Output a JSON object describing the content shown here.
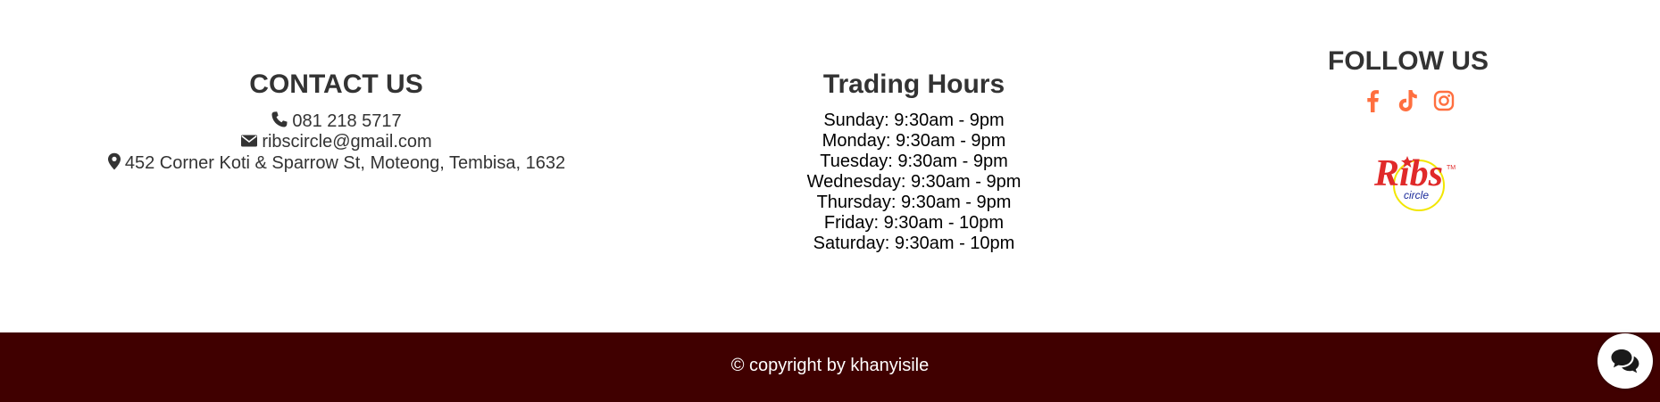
{
  "contact": {
    "title": "CONTACT US",
    "phone": "081 218 5717",
    "email": "ribscircle@gmail.com",
    "address": "452 Corner Koti & Sparrow St, Moteong, Tembisa, 1632",
    "icons": [
      "phone-icon",
      "envelope-icon",
      "map-marker-icon"
    ]
  },
  "hours": {
    "title": "Trading Hours",
    "lines": [
      "Sunday: 9:30am - 9pm",
      "Monday: 9:30am - 9pm",
      "Tuesday: 9:30am - 9pm",
      "Wednesday: 9:30am - 9pm",
      "Thursday: 9:30am - 9pm",
      "Friday: 9:30am - 10pm",
      "Saturday: 9:30am - 10pm"
    ]
  },
  "follow": {
    "title": "FOLLOW US",
    "icons": [
      "facebook-icon",
      "tiktok-icon",
      "instagram-icon"
    ],
    "icon_color": "#ff6f3f",
    "logo": {
      "brand": "Ribs",
      "sub": "circle",
      "mark": "TM",
      "brand_color": "#e02a2a",
      "sub_color": "#1a2a9a",
      "ring_color": "#f2e600"
    }
  },
  "footer": {
    "copyright": "© copyright by khanyisile",
    "background": "#400000"
  },
  "chat": {
    "icon": "chat-bubbles-icon"
  }
}
